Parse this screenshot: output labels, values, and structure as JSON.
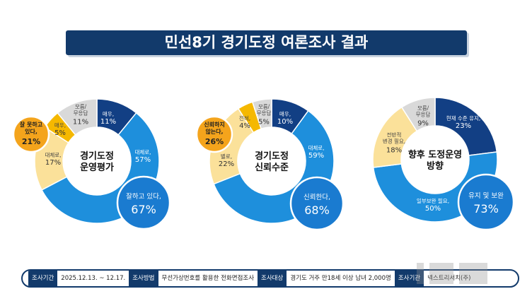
{
  "title": "민선8기 경기도정 여론조사 결과",
  "chart_data": [
    {
      "type": "donut",
      "center_label": "경기도정\n운영평가",
      "segments": [
        {
          "label": "매우,",
          "value": 11,
          "color": "#123f84"
        },
        {
          "label": "대체로,",
          "value": 57,
          "color": "#1e8fdc"
        },
        {
          "label": "대체로,",
          "value": 17,
          "color": "#fbe19a"
        },
        {
          "label": "매우,",
          "value": 5,
          "color": "#f5b800"
        },
        {
          "label": "모름/\n무응답",
          "value": 11,
          "color": "#d9d9d9"
        }
      ],
      "callouts": [
        {
          "label": "잘하고 있다,",
          "value": "67%",
          "color": "#1a7bd0"
        },
        {
          "label": "잘 못하고\n있다,",
          "value": "21%",
          "color": "#f4a41c"
        }
      ]
    },
    {
      "type": "donut",
      "center_label": "경기도정\n신뢰수준",
      "segments": [
        {
          "label": "매우,",
          "value": 10,
          "color": "#123f84"
        },
        {
          "label": "대체로,",
          "value": 59,
          "color": "#1e8fdc"
        },
        {
          "label": "별로,",
          "value": 22,
          "color": "#fbe19a"
        },
        {
          "label": "전혀,",
          "value": 4,
          "color": "#f5b800"
        },
        {
          "label": "모름/\n무응답",
          "value": 5,
          "color": "#d9d9d9"
        }
      ],
      "callouts": [
        {
          "label": "신뢰한다,",
          "value": "68%",
          "color": "#1a7bd0"
        },
        {
          "label": "신뢰하지\n않는다,",
          "value": "26%",
          "color": "#f4a41c"
        }
      ]
    },
    {
      "type": "donut",
      "center_label": "향후 도정운영\n방향",
      "segments": [
        {
          "label": "현재 수준 유지,",
          "value": 23,
          "color": "#123f84"
        },
        {
          "label": "일부보완 필요,",
          "value": 50,
          "color": "#1e8fdc"
        },
        {
          "label": "전반적\n변경 필요,",
          "value": 18,
          "color": "#fbe19a"
        },
        {
          "label": "모름/\n무응답",
          "value": 9,
          "color": "#d9d9d9"
        }
      ],
      "callouts": [
        {
          "label": "유지 및 보완",
          "value": "73%",
          "color": "#1a7bd0"
        }
      ]
    }
  ],
  "footer": [
    {
      "key": "조사기간",
      "value": "2025.12.13. ~ 12.17."
    },
    {
      "key": "조사방법",
      "value": "무선가상번호를 활용한 전화면접조사"
    },
    {
      "key": "조사대상",
      "value": "경기도 거주 만18세 이상 남녀 2,000명"
    },
    {
      "key": "조사기관",
      "value": "넥스트리서치(주)"
    }
  ],
  "watermark": "JNM NEWS"
}
